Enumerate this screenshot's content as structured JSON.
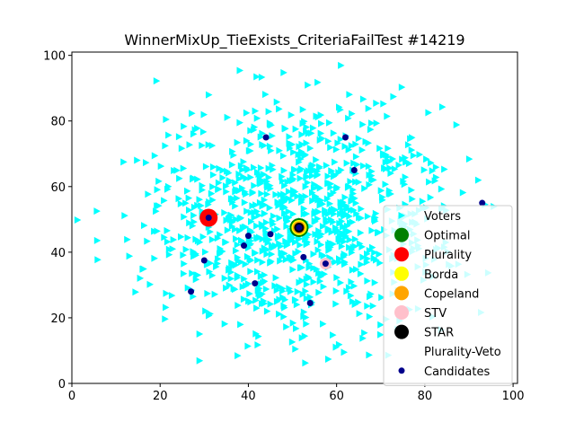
{
  "chart_data": {
    "type": "scatter",
    "title": "WinnerMixUp_TieExists_CriteriaFailTest #14219",
    "xlabel": "",
    "ylabel": "",
    "xlim": [
      0,
      101
    ],
    "ylim": [
      0,
      101
    ],
    "xticks": [
      0,
      20,
      40,
      60,
      80,
      100
    ],
    "yticks": [
      0,
      20,
      40,
      60,
      80,
      100
    ],
    "grid": false,
    "legend_position": "lower-right",
    "voter_count": 1000,
    "voter_distribution": {
      "center": [
        51,
        50
      ],
      "spread": 17
    },
    "colors": {
      "voters": "#00ffff",
      "optimal": "#008000",
      "plurality": "#ff0000",
      "borda": "#ffff00",
      "copeland": "#ffa500",
      "stv": "#ffc0cb",
      "star": "#000000",
      "candidates": "#00008b"
    },
    "candidates": [
      {
        "x": 31,
        "y": 50.5
      },
      {
        "x": 44,
        "y": 75
      },
      {
        "x": 62,
        "y": 75
      },
      {
        "x": 64,
        "y": 65
      },
      {
        "x": 93,
        "y": 55
      },
      {
        "x": 40,
        "y": 45
      },
      {
        "x": 45,
        "y": 45.5
      },
      {
        "x": 39,
        "y": 42
      },
      {
        "x": 51.5,
        "y": 47.5
      },
      {
        "x": 30,
        "y": 37.5
      },
      {
        "x": 52.5,
        "y": 38.5
      },
      {
        "x": 57.5,
        "y": 36.5
      },
      {
        "x": 27,
        "y": 28
      },
      {
        "x": 41.5,
        "y": 30.5
      },
      {
        "x": 54,
        "y": 24.5
      }
    ],
    "winners": {
      "optimal": {
        "x": 51.5,
        "y": 47.5
      },
      "plurality": {
        "x": 31,
        "y": 50.5
      },
      "borda": {
        "x": 51.5,
        "y": 47.5
      },
      "copeland": {
        "x": 51.5,
        "y": 47.5
      },
      "stv": {
        "x": 57.5,
        "y": 36.5
      },
      "star": {
        "x": 51.5,
        "y": 47.5
      }
    },
    "legend": [
      {
        "key": "voters",
        "label": "Voters"
      },
      {
        "key": "optimal",
        "label": "Optimal"
      },
      {
        "key": "plurality",
        "label": "Plurality"
      },
      {
        "key": "borda",
        "label": "Borda"
      },
      {
        "key": "copeland",
        "label": "Copeland"
      },
      {
        "key": "stv",
        "label": "STV"
      },
      {
        "key": "star",
        "label": "STAR"
      },
      {
        "key": "plurality_veto",
        "label": "Plurality-Veto"
      },
      {
        "key": "candidates",
        "label": "Candidates"
      }
    ]
  }
}
